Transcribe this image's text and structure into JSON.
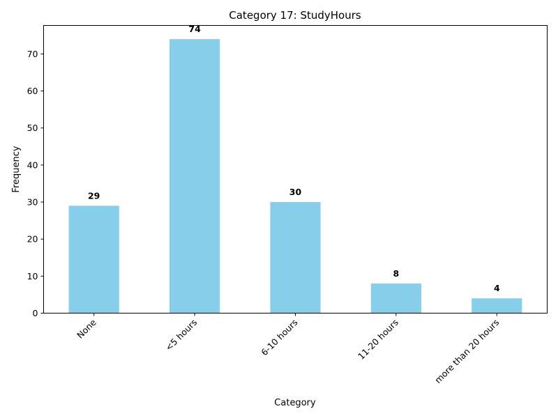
{
  "chart_data": {
    "type": "bar",
    "title": "Category 17: StudyHours",
    "xlabel": "Category",
    "ylabel": "Frequency",
    "categories": [
      "None",
      "<5 hours",
      "6-10 hours",
      "11-20 hours",
      "more than 20 hours"
    ],
    "values": [
      29,
      74,
      30,
      8,
      4
    ],
    "ylim": [
      0,
      77.7
    ],
    "yticks": [
      0,
      10,
      20,
      30,
      40,
      50,
      60,
      70
    ],
    "grid": false,
    "legend": "none",
    "bar_color": "#87ceeb"
  }
}
